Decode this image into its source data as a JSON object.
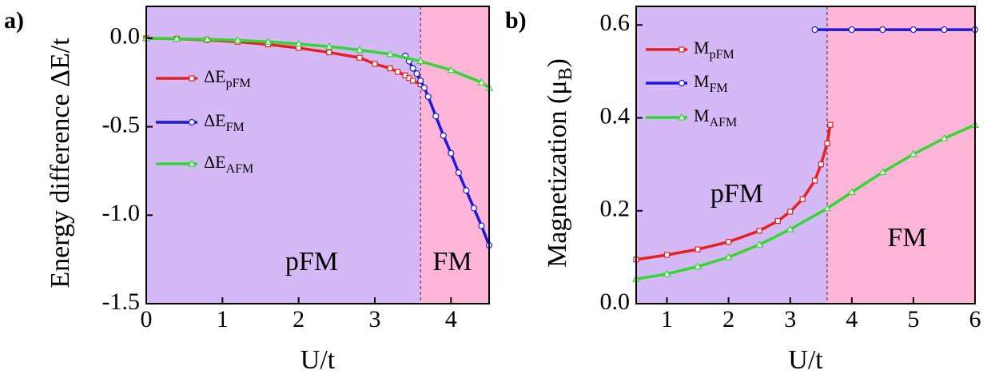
{
  "chart_data": [
    {
      "type": "line",
      "panel_label": "a)",
      "xlabel": "U/t",
      "ylabel": "Energy difference  ΔE/t",
      "xlim": [
        0,
        4.5
      ],
      "ylim": [
        -1.5,
        0.18
      ],
      "xticks": [
        0,
        1,
        2,
        3,
        4
      ],
      "yticks": [
        {
          "value": 0,
          "label": "0.0"
        },
        -0.5,
        {
          "value": -1,
          "label": "-1.0"
        },
        -1.5
      ],
      "phase_boundary": 3.6,
      "region_colors": [
        "#d5b9f6",
        "#ffb5d8"
      ],
      "annotations": [
        "pFM",
        "FM"
      ],
      "series": [
        {
          "name": "ΔE",
          "name_sub": "pFM",
          "color": "#e8201d",
          "marker": "square",
          "x": [
            0,
            0.4,
            0.8,
            1.2,
            1.6,
            2.0,
            2.4,
            2.8,
            3.0,
            3.2,
            3.3,
            3.4,
            3.45,
            3.5,
            3.6
          ],
          "values": [
            0,
            -0.003,
            -0.01,
            -0.02,
            -0.035,
            -0.055,
            -0.08,
            -0.11,
            -0.145,
            -0.17,
            -0.19,
            -0.21,
            -0.225,
            -0.24,
            -0.26
          ]
        },
        {
          "name": "ΔE",
          "name_sub": "FM",
          "color": "#1a1ad8",
          "marker": "circle",
          "x": [
            3.4,
            3.45,
            3.5,
            3.55,
            3.6,
            3.65,
            3.7,
            3.8,
            3.9,
            4.0,
            4.1,
            4.2,
            4.3,
            4.4,
            4.5
          ],
          "values": [
            -0.1,
            -0.13,
            -0.17,
            -0.2,
            -0.24,
            -0.28,
            -0.33,
            -0.44,
            -0.55,
            -0.65,
            -0.76,
            -0.86,
            -0.96,
            -1.06,
            -1.17
          ]
        },
        {
          "name": "ΔE",
          "name_sub": "AFM",
          "color": "#33d633",
          "marker": "triangle",
          "x": [
            0,
            0.4,
            0.8,
            1.2,
            1.6,
            2.0,
            2.4,
            2.8,
            3.2,
            3.6,
            4.0,
            4.4,
            4.5
          ],
          "values": [
            0,
            -0.002,
            -0.006,
            -0.012,
            -0.02,
            -0.032,
            -0.047,
            -0.066,
            -0.09,
            -0.13,
            -0.18,
            -0.25,
            -0.28
          ]
        }
      ]
    },
    {
      "type": "line",
      "panel_label": "b)",
      "xlabel": "U/t",
      "ylabel": "Magnetization (μ",
      "ylabel_sub": "B",
      "ylabel_tail": ")",
      "xlim": [
        0.5,
        6
      ],
      "ylim": [
        0,
        0.64
      ],
      "xticks": [
        1,
        2,
        3,
        4,
        5,
        6
      ],
      "yticks": [
        {
          "value": 0,
          "label": "0.0"
        },
        0.2,
        0.4,
        0.6
      ],
      "phase_boundary": 3.6,
      "region_colors": [
        "#d5b9f6",
        "#ffb5d8"
      ],
      "annotations": [
        "pFM",
        "FM"
      ],
      "series": [
        {
          "name": "M",
          "name_sub": "pFM",
          "color": "#e8201d",
          "marker": "square",
          "x": [
            0.5,
            1,
            1.5,
            2,
            2.5,
            2.8,
            3,
            3.2,
            3.4,
            3.5,
            3.6,
            3.65
          ],
          "values": [
            0.095,
            0.105,
            0.117,
            0.133,
            0.157,
            0.178,
            0.198,
            0.225,
            0.265,
            0.3,
            0.345,
            0.385
          ]
        },
        {
          "name": "M",
          "name_sub": "FM",
          "color": "#1a1ad8",
          "marker": "circle",
          "x": [
            3.4,
            4,
            4.5,
            5,
            5.5,
            6
          ],
          "values": [
            0.59,
            0.59,
            0.59,
            0.59,
            0.59,
            0.59
          ]
        },
        {
          "name": "M",
          "name_sub": "AFM",
          "color": "#33d633",
          "marker": "triangle",
          "x": [
            0.5,
            1,
            1.5,
            2,
            2.5,
            3,
            3.6,
            4,
            4.5,
            5,
            5.5,
            6
          ],
          "values": [
            0.053,
            0.064,
            0.08,
            0.1,
            0.127,
            0.16,
            0.205,
            0.24,
            0.283,
            0.322,
            0.356,
            0.385
          ]
        }
      ]
    }
  ]
}
